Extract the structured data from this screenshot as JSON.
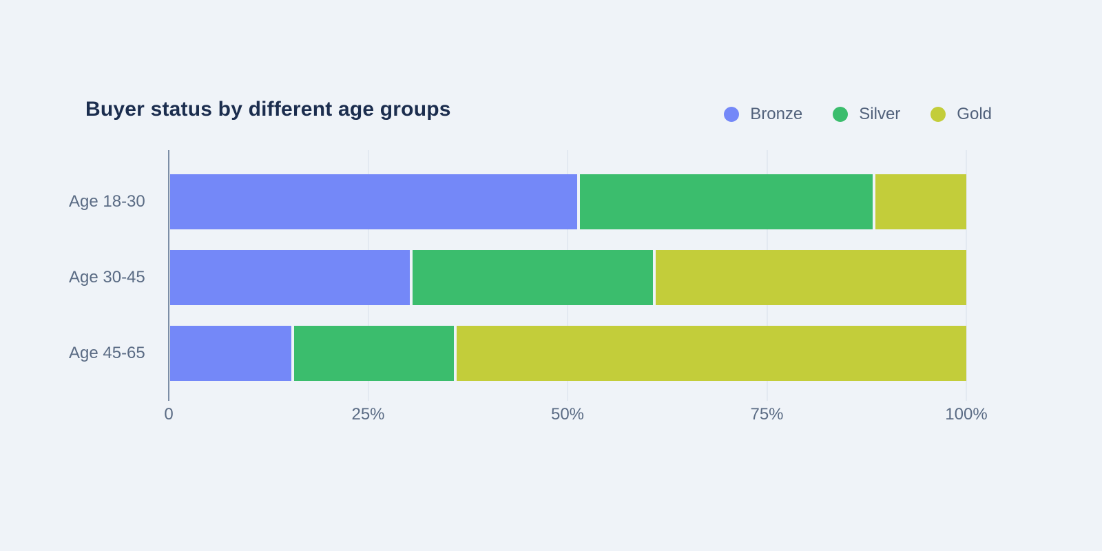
{
  "chart_data": {
    "type": "bar",
    "orientation": "horizontal",
    "stacked": true,
    "stack_total_pct": 100,
    "title": "Buyer status by different age groups",
    "categories": [
      "Age 18-30",
      "Age 30-45",
      "Age 45-65"
    ],
    "series": [
      {
        "name": "Bronze",
        "color": "#7488F8",
        "values": [
          51.5,
          30.3,
          15.3
        ]
      },
      {
        "name": "Silver",
        "color": "#3BBD6D",
        "values": [
          37.0,
          30.4,
          20.2
        ]
      },
      {
        "name": "Gold",
        "color": "#C3CD3A",
        "values": [
          11.5,
          39.3,
          64.5
        ]
      }
    ],
    "xlabel": "",
    "ylabel": "",
    "x_ticks": [
      "0",
      "25%",
      "50%",
      "75%",
      "100%"
    ],
    "xlim": [
      0,
      100
    ],
    "grid": "vertical",
    "legend_position": "top-right"
  },
  "colors": {
    "background": "#EFF3F8",
    "title_text": "#1B2D4E",
    "secondary_text": "#5A6B84",
    "legend_text": "#51617B",
    "axis_line": "#7C8EA6",
    "gridline": "#E3E9F1"
  }
}
